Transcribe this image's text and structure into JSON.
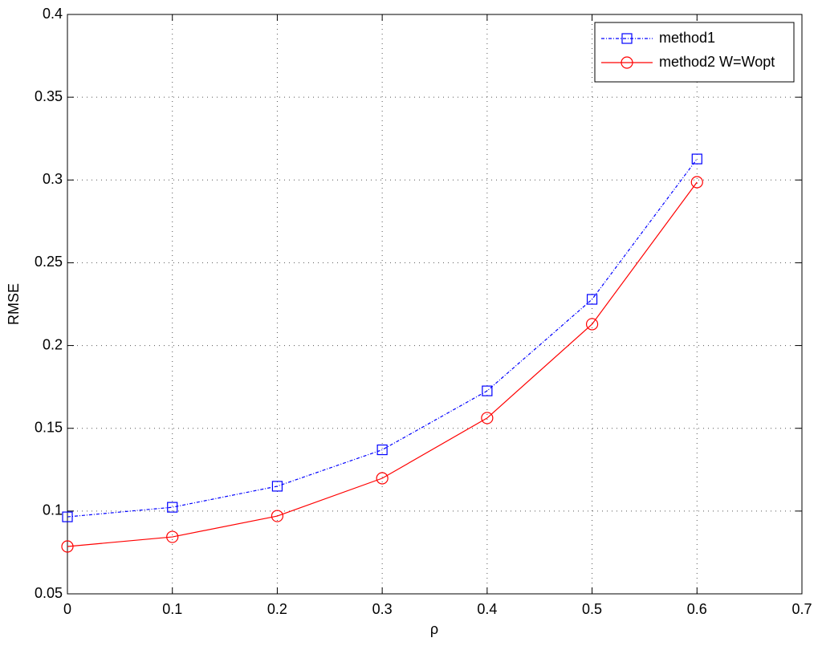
{
  "chart_data": {
    "type": "line",
    "x_label": "ρ",
    "y_label": "RMSE",
    "x": [
      0,
      0.1,
      0.2,
      0.3,
      0.4,
      0.5,
      0.6
    ],
    "series": [
      {
        "name": "method1",
        "color": "#0000ff",
        "marker": "square",
        "linestyle": "dashdot",
        "values": [
          0.0965,
          0.1023,
          0.115,
          0.137,
          0.1726,
          0.2279,
          0.3127
        ]
      },
      {
        "name": "method2 W=Wopt",
        "color": "#ff0000",
        "marker": "circle",
        "linestyle": "solid",
        "values": [
          0.0786,
          0.0844,
          0.097,
          0.1198,
          0.1562,
          0.2129,
          0.2987
        ]
      }
    ],
    "xlim": [
      0,
      0.7
    ],
    "xticks": [
      0,
      0.1,
      0.2,
      0.3,
      0.4,
      0.5,
      0.6,
      0.7
    ],
    "ylim": [
      0.05,
      0.4
    ],
    "yticks": [
      0.05,
      0.1,
      0.15,
      0.2,
      0.25,
      0.3,
      0.35,
      0.4
    ],
    "grid": true,
    "legend": "upper right"
  }
}
